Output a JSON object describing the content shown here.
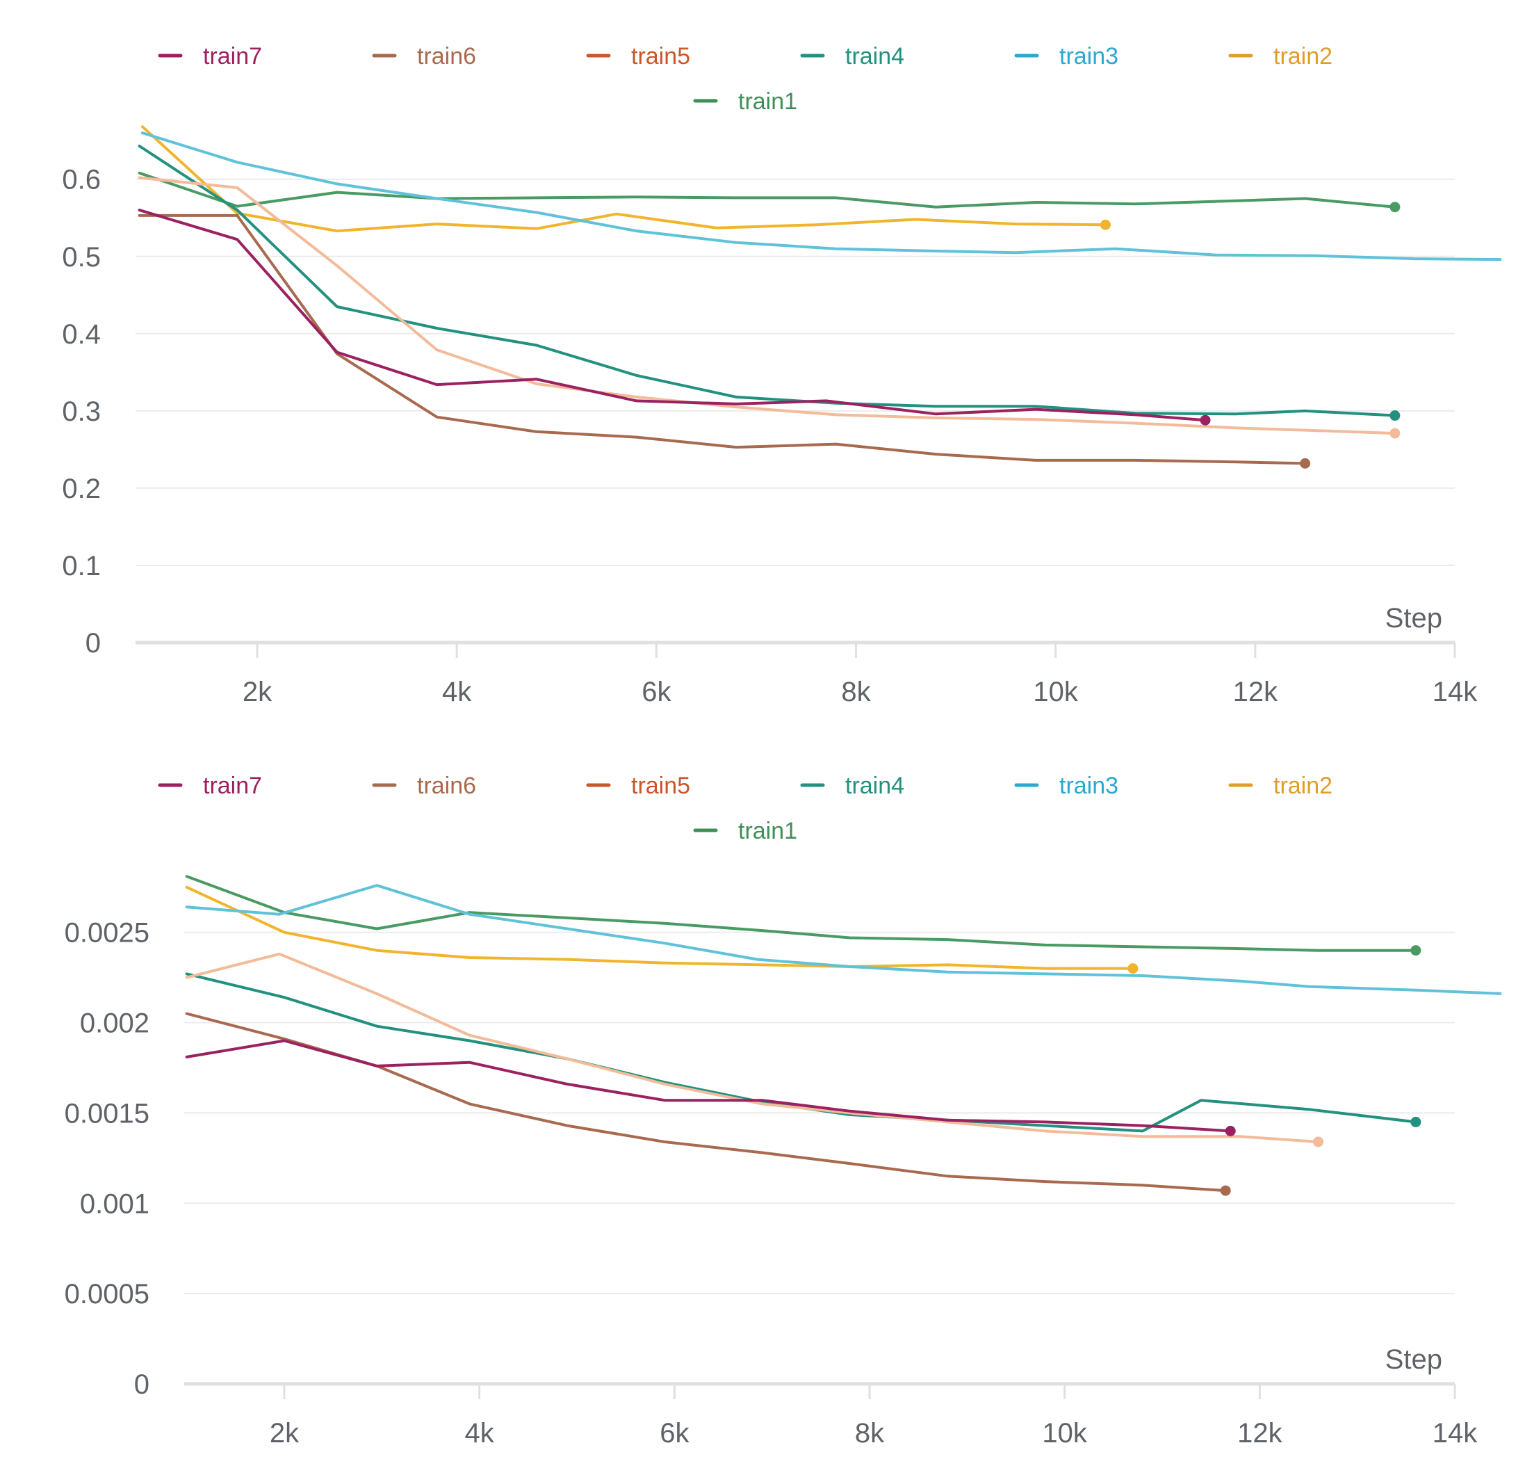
{
  "legend": [
    {
      "name": "train7",
      "color": "#9b2160"
    },
    {
      "name": "train6",
      "color": "#a86a4f"
    },
    {
      "name": "train5",
      "color": "#c8572a"
    },
    {
      "name": "train4",
      "color": "#23917f"
    },
    {
      "name": "train3",
      "color": "#2aa8cf"
    },
    {
      "name": "train2",
      "color": "#e09d2a"
    },
    {
      "name": "train1",
      "color": "#3f8f57"
    }
  ],
  "chart_data": [
    {
      "type": "line",
      "title": "",
      "xlabel": "Step",
      "ylabel": "",
      "xlim": [
        800,
        14000
      ],
      "ylim": [
        0,
        0.67
      ],
      "xticks": [
        2000,
        4000,
        6000,
        8000,
        10000,
        12000,
        14000
      ],
      "xtick_labels": [
        "2k",
        "4k",
        "6k",
        "8k",
        "10k",
        "12k",
        "14k"
      ],
      "yticks": [
        0,
        0.1,
        0.2,
        0.3,
        0.4,
        0.5,
        0.6
      ],
      "ytick_labels": [
        "0",
        "0.1",
        "0.2",
        "0.3",
        "0.4",
        "0.5",
        "0.6"
      ],
      "series": [
        {
          "name": "train1",
          "color": "#4a9a64",
          "end_marker": true,
          "x": [
            820,
            1800,
            2800,
            3800,
            4800,
            5800,
            6800,
            7800,
            8800,
            9800,
            10800,
            11800,
            12500,
            13400
          ],
          "y": [
            0.608,
            0.565,
            0.583,
            0.575,
            0.576,
            0.577,
            0.576,
            0.576,
            0.564,
            0.57,
            0.568,
            0.572,
            0.575,
            0.564
          ]
        },
        {
          "name": "train2",
          "color": "#f0b52c",
          "end_marker": true,
          "x": [
            850,
            1800,
            2800,
            3800,
            4800,
            5600,
            6600,
            7600,
            8600,
            9600,
            10500
          ],
          "y": [
            0.668,
            0.556,
            0.533,
            0.542,
            0.536,
            0.555,
            0.537,
            0.541,
            0.548,
            0.542,
            0.541
          ]
        },
        {
          "name": "train3",
          "color": "#60c2d8",
          "end_marker": false,
          "x": [
            850,
            1800,
            2800,
            3800,
            4800,
            5800,
            6800,
            7800,
            8800,
            9600,
            10600,
            11600,
            12600,
            13600,
            14500
          ],
          "y": [
            0.66,
            0.622,
            0.594,
            0.575,
            0.557,
            0.533,
            0.518,
            0.51,
            0.507,
            0.505,
            0.51,
            0.502,
            0.501,
            0.497,
            0.496
          ]
        },
        {
          "name": "train4",
          "color": "#23917f",
          "end_marker": true,
          "x": [
            820,
            1800,
            2800,
            3800,
            4800,
            5800,
            6800,
            7800,
            8800,
            9800,
            10800,
            11800,
            12500,
            13400
          ],
          "y": [
            0.643,
            0.56,
            0.435,
            0.407,
            0.385,
            0.346,
            0.318,
            0.31,
            0.306,
            0.306,
            0.297,
            0.296,
            0.3,
            0.294
          ]
        },
        {
          "name": "train5",
          "color": "#f2bb9a",
          "end_marker": true,
          "x": [
            820,
            1800,
            2800,
            3800,
            4800,
            5800,
            6800,
            7800,
            8800,
            9800,
            10800,
            11800,
            12500,
            13400
          ],
          "y": [
            0.602,
            0.589,
            0.488,
            0.379,
            0.335,
            0.318,
            0.305,
            0.295,
            0.291,
            0.289,
            0.284,
            0.278,
            0.275,
            0.271
          ]
        },
        {
          "name": "train6",
          "color": "#a86a4f",
          "end_marker": true,
          "x": [
            820,
            1800,
            2800,
            3800,
            4800,
            5800,
            6800,
            7800,
            8800,
            9800,
            10800,
            11800,
            12500
          ],
          "y": [
            0.553,
            0.553,
            0.374,
            0.292,
            0.273,
            0.266,
            0.253,
            0.257,
            0.244,
            0.236,
            0.236,
            0.234,
            0.232
          ]
        },
        {
          "name": "train7",
          "color": "#9b2160",
          "end_marker": true,
          "x": [
            820,
            1800,
            2800,
            3800,
            4800,
            5800,
            6800,
            7700,
            8800,
            9800,
            10800,
            11500
          ],
          "y": [
            0.56,
            0.522,
            0.376,
            0.334,
            0.341,
            0.313,
            0.309,
            0.313,
            0.296,
            0.302,
            0.295,
            0.288
          ]
        }
      ]
    },
    {
      "type": "line",
      "title": "",
      "xlabel": "Step",
      "ylabel": "",
      "xlim": [
        1000,
        14000
      ],
      "ylim": [
        0,
        0.00293
      ],
      "xticks": [
        2000,
        4000,
        6000,
        8000,
        10000,
        12000,
        14000
      ],
      "xtick_labels": [
        "2k",
        "4k",
        "6k",
        "8k",
        "10k",
        "12k",
        "14k"
      ],
      "yticks": [
        0,
        0.0005,
        0.001,
        0.0015,
        0.002,
        0.0025
      ],
      "ytick_labels": [
        "0",
        "0.0005",
        "0.001",
        "0.0015",
        "0.002",
        "0.0025"
      ],
      "series": [
        {
          "name": "train1",
          "color": "#4a9a64",
          "end_marker": true,
          "x": [
            1000,
            2000,
            2950,
            3900,
            4900,
            5900,
            6900,
            7800,
            8800,
            9800,
            10800,
            11800,
            12600,
            13600
          ],
          "y": [
            0.00281,
            0.00261,
            0.00252,
            0.00261,
            0.00258,
            0.00255,
            0.00251,
            0.00247,
            0.00246,
            0.00243,
            0.00242,
            0.00241,
            0.0024,
            0.0024
          ]
        },
        {
          "name": "train2",
          "color": "#f0b52c",
          "end_marker": true,
          "x": [
            1000,
            2000,
            2950,
            3900,
            4900,
            5900,
            6900,
            7800,
            8800,
            9800,
            10700
          ],
          "y": [
            0.00275,
            0.0025,
            0.0024,
            0.00236,
            0.00235,
            0.00233,
            0.00232,
            0.00231,
            0.00232,
            0.0023,
            0.0023
          ]
        },
        {
          "name": "train3",
          "color": "#60c2d8",
          "end_marker": false,
          "x": [
            1000,
            1950,
            2950,
            3900,
            4900,
            5900,
            6850,
            7800,
            8800,
            9800,
            10800,
            11800,
            12500,
            13600,
            14500
          ],
          "y": [
            0.00264,
            0.0026,
            0.00276,
            0.0026,
            0.00252,
            0.00244,
            0.00235,
            0.00231,
            0.00228,
            0.00227,
            0.00226,
            0.00223,
            0.0022,
            0.00218,
            0.00216
          ]
        },
        {
          "name": "train4",
          "color": "#23917f",
          "end_marker": true,
          "x": [
            1000,
            2000,
            2950,
            3900,
            4900,
            5900,
            6900,
            7800,
            8800,
            9800,
            10800,
            11400,
            12500,
            13600
          ],
          "y": [
            0.00227,
            0.00214,
            0.00198,
            0.0019,
            0.0018,
            0.00167,
            0.00156,
            0.00149,
            0.00146,
            0.00143,
            0.0014,
            0.00157,
            0.00152,
            0.00145
          ]
        },
        {
          "name": "train5",
          "color": "#f2bb9a",
          "end_marker": true,
          "x": [
            1000,
            1950,
            2950,
            3900,
            4900,
            5900,
            6900,
            7800,
            8800,
            9800,
            10800,
            11800,
            12600
          ],
          "y": [
            0.00225,
            0.00238,
            0.00216,
            0.00193,
            0.0018,
            0.00166,
            0.00155,
            0.0015,
            0.00145,
            0.0014,
            0.00137,
            0.00137,
            0.00134
          ]
        },
        {
          "name": "train6",
          "color": "#a86a4f",
          "end_marker": true,
          "x": [
            1000,
            2000,
            2950,
            3900,
            4900,
            5900,
            6900,
            7800,
            8800,
            9800,
            10800,
            11650
          ],
          "y": [
            0.00205,
            0.00191,
            0.00176,
            0.00155,
            0.00143,
            0.00134,
            0.00128,
            0.00122,
            0.00115,
            0.00112,
            0.0011,
            0.00107
          ]
        },
        {
          "name": "train7",
          "color": "#9b2160",
          "end_marker": true,
          "x": [
            1000,
            2000,
            2950,
            3900,
            4900,
            5900,
            6900,
            7800,
            8800,
            9800,
            10800,
            11700
          ],
          "y": [
            0.00181,
            0.0019,
            0.00176,
            0.00178,
            0.00166,
            0.00157,
            0.00157,
            0.00151,
            0.00146,
            0.00145,
            0.00143,
            0.0014
          ]
        }
      ]
    }
  ]
}
